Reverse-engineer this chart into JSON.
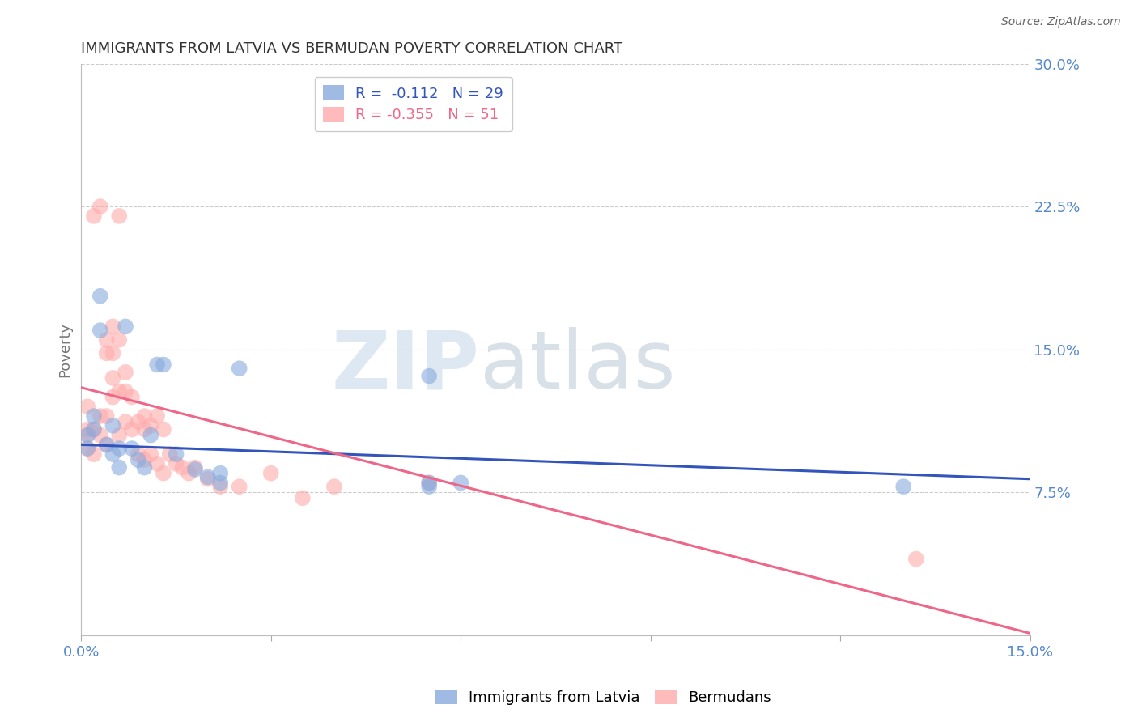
{
  "title": "IMMIGRANTS FROM LATVIA VS BERMUDAN POVERTY CORRELATION CHART",
  "source": "Source: ZipAtlas.com",
  "ylabel": "Poverty",
  "xlim": [
    0.0,
    0.15
  ],
  "ylim": [
    0.0,
    0.3
  ],
  "r_blue": -0.112,
  "n_blue": 29,
  "r_pink": -0.355,
  "n_pink": 51,
  "blue_color": "#88AADD",
  "pink_color": "#FFAAAA",
  "blue_line_color": "#3355BB",
  "pink_line_color": "#EE6688",
  "blue_scatter_x": [
    0.001,
    0.001,
    0.002,
    0.002,
    0.003,
    0.003,
    0.004,
    0.005,
    0.005,
    0.006,
    0.006,
    0.007,
    0.008,
    0.009,
    0.01,
    0.011,
    0.012,
    0.013,
    0.015,
    0.018,
    0.02,
    0.022,
    0.022,
    0.025,
    0.055,
    0.055,
    0.06,
    0.13,
    0.055
  ],
  "blue_scatter_y": [
    0.105,
    0.098,
    0.115,
    0.108,
    0.178,
    0.16,
    0.1,
    0.095,
    0.11,
    0.088,
    0.098,
    0.162,
    0.098,
    0.092,
    0.088,
    0.105,
    0.142,
    0.142,
    0.095,
    0.087,
    0.083,
    0.08,
    0.085,
    0.14,
    0.078,
    0.08,
    0.08,
    0.078,
    0.136
  ],
  "pink_scatter_x": [
    0.001,
    0.001,
    0.001,
    0.001,
    0.002,
    0.002,
    0.002,
    0.003,
    0.003,
    0.003,
    0.004,
    0.004,
    0.004,
    0.004,
    0.005,
    0.005,
    0.005,
    0.005,
    0.006,
    0.006,
    0.006,
    0.006,
    0.007,
    0.007,
    0.007,
    0.008,
    0.008,
    0.009,
    0.009,
    0.01,
    0.01,
    0.01,
    0.011,
    0.011,
    0.012,
    0.012,
    0.013,
    0.013,
    0.014,
    0.015,
    0.016,
    0.017,
    0.018,
    0.02,
    0.022,
    0.025,
    0.03,
    0.035,
    0.04,
    0.055,
    0.132
  ],
  "pink_scatter_y": [
    0.108,
    0.098,
    0.12,
    0.105,
    0.22,
    0.108,
    0.095,
    0.225,
    0.115,
    0.105,
    0.155,
    0.148,
    0.115,
    0.1,
    0.162,
    0.148,
    0.135,
    0.125,
    0.22,
    0.155,
    0.128,
    0.105,
    0.138,
    0.128,
    0.112,
    0.125,
    0.108,
    0.112,
    0.095,
    0.115,
    0.108,
    0.092,
    0.11,
    0.095,
    0.115,
    0.09,
    0.108,
    0.085,
    0.095,
    0.09,
    0.088,
    0.085,
    0.088,
    0.082,
    0.078,
    0.078,
    0.085,
    0.072,
    0.078,
    0.08,
    0.04
  ],
  "blue_line_x0": 0.0,
  "blue_line_y0": 0.1,
  "blue_line_x1": 0.15,
  "blue_line_y1": 0.082,
  "pink_line_x0": 0.0,
  "pink_line_y0": 0.13,
  "pink_line_x1": 0.15,
  "pink_line_y1": 0.001,
  "background_color": "#FFFFFF",
  "grid_color": "#CCCCCC",
  "ytick_pos": [
    0.075,
    0.15,
    0.225,
    0.3
  ],
  "ytick_labels": [
    "7.5%",
    "15.0%",
    "22.5%",
    "30.0%"
  ],
  "xtick_pos": [
    0.0,
    0.03,
    0.06,
    0.09,
    0.12,
    0.15
  ],
  "xtick_labels": [
    "0.0%",
    "",
    "",
    "",
    "",
    "15.0%"
  ],
  "label_color": "#5588CC",
  "title_color": "#333333",
  "source_color": "#666666"
}
